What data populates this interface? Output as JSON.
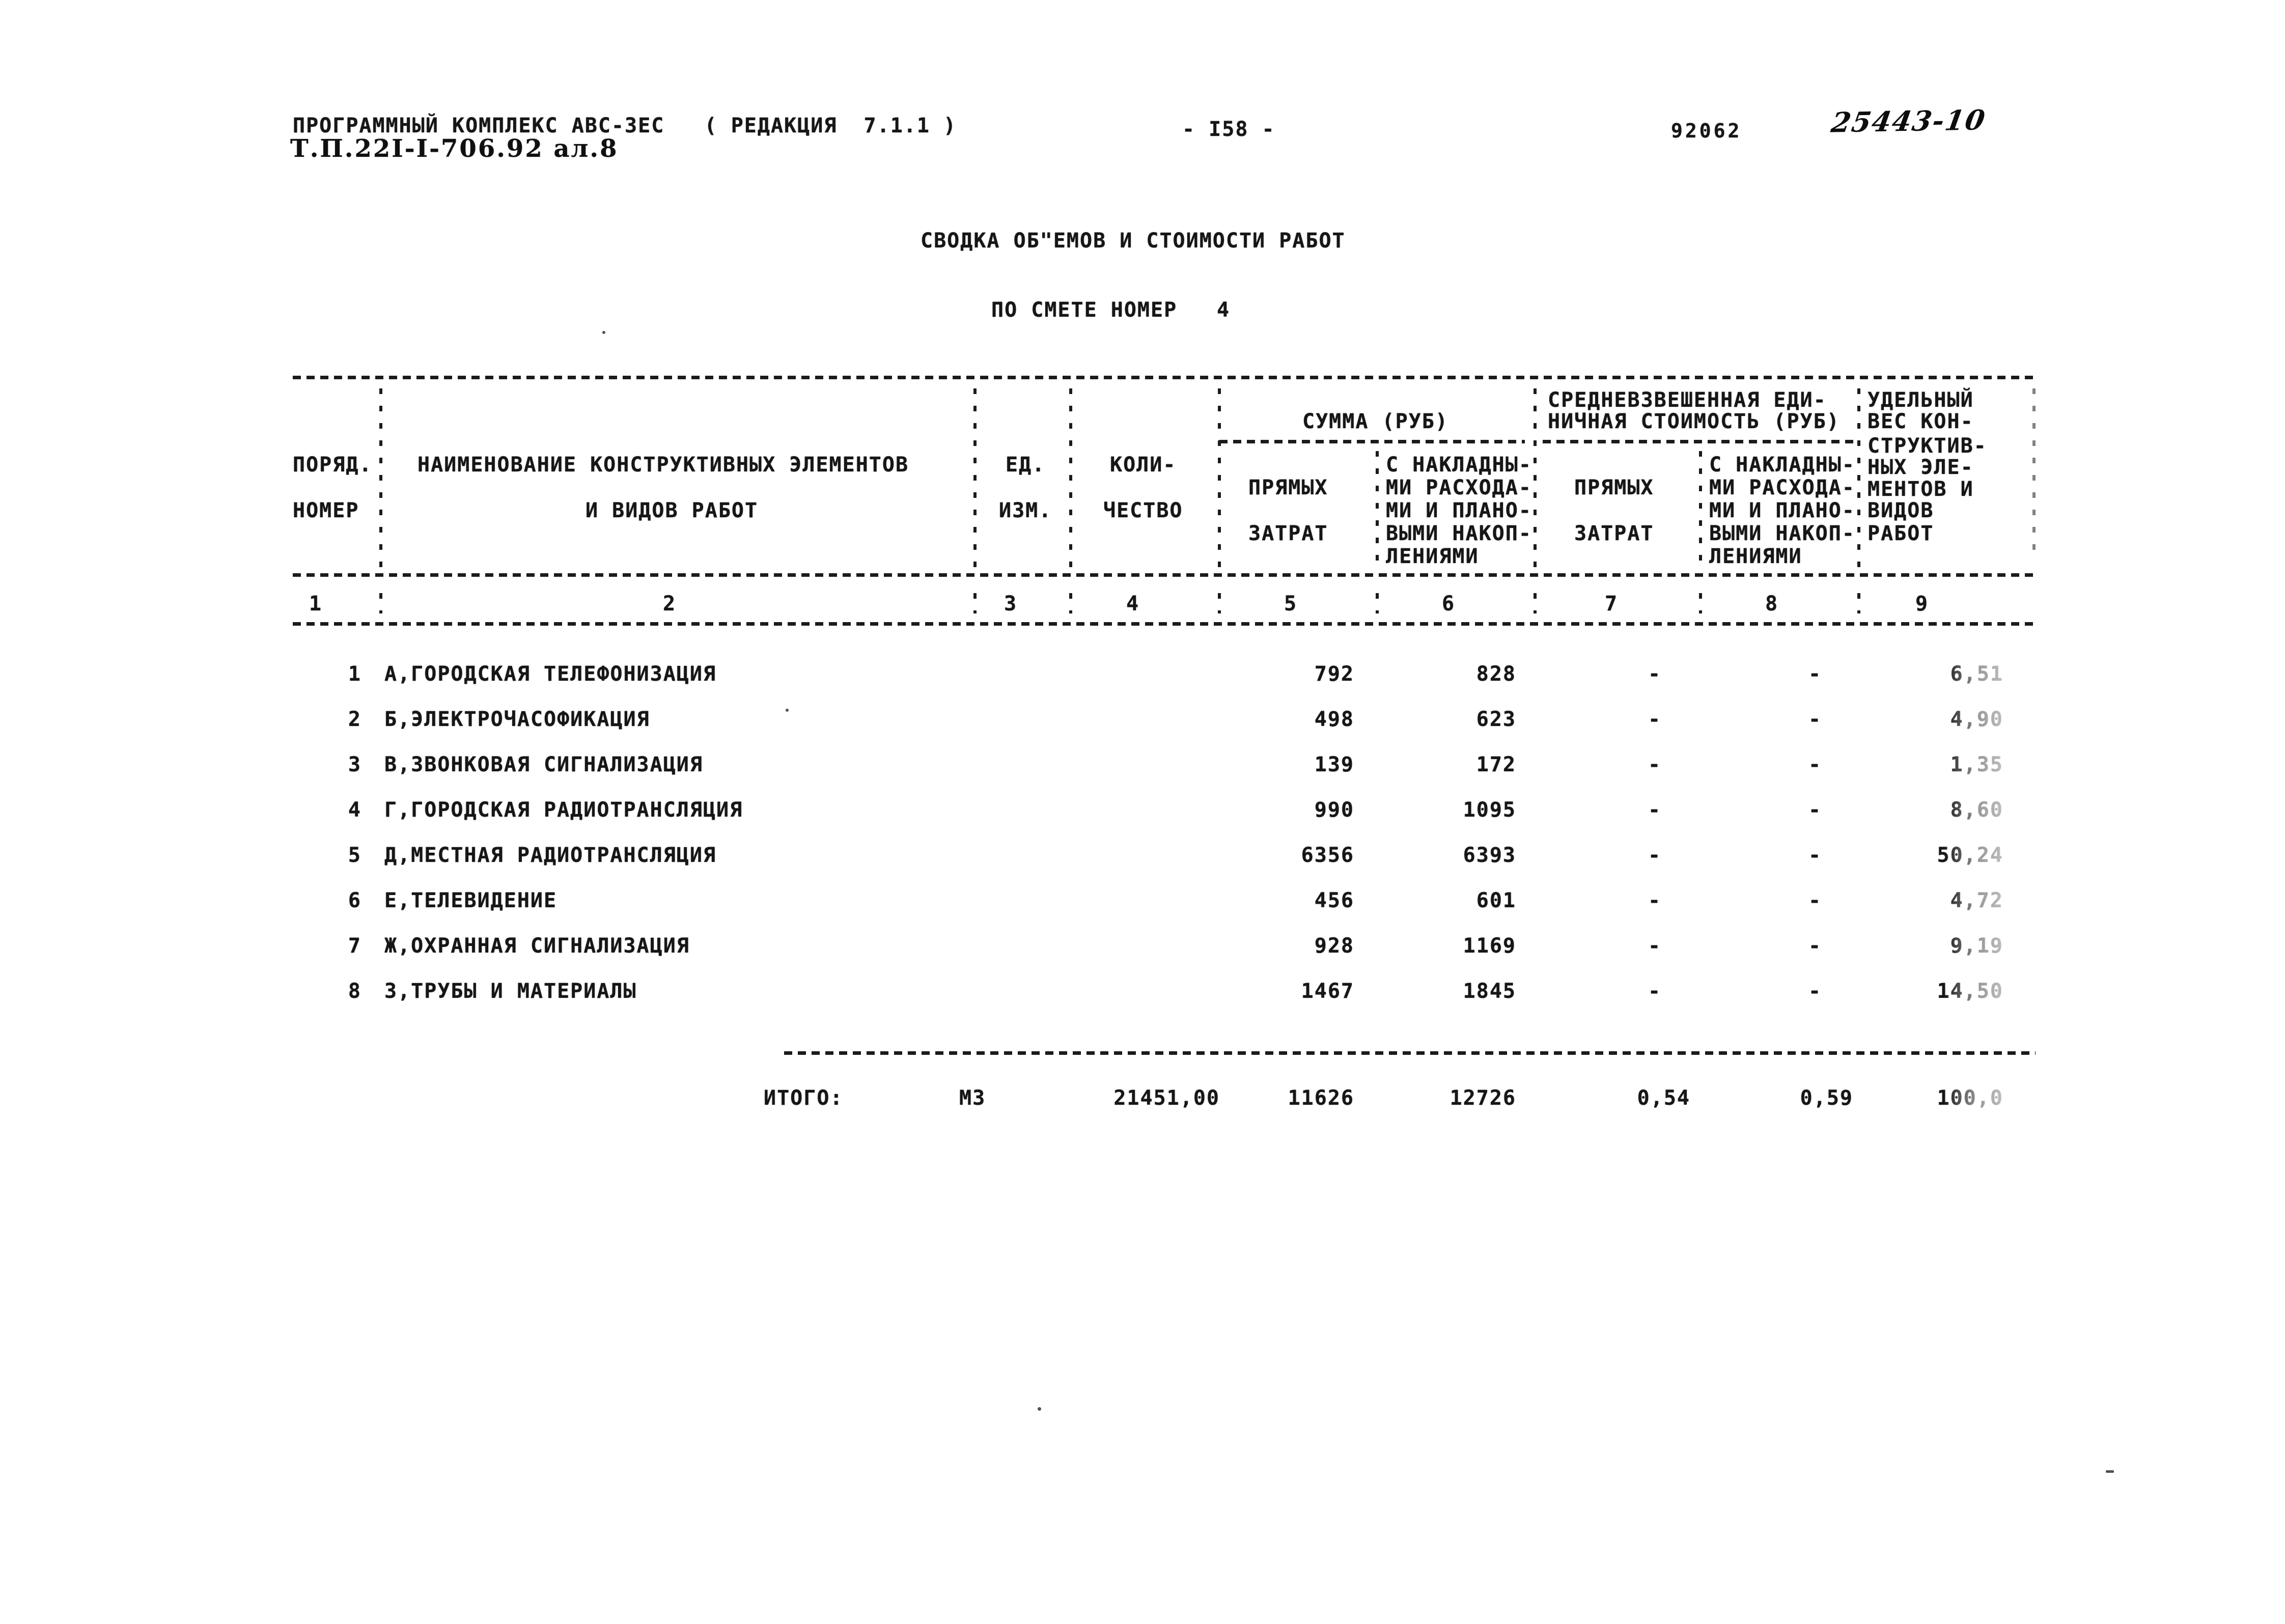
{
  "page": {
    "program_line": "ПРОГРАММНЫЙ КОМПЛЕКС АВС-3ЕС   ( РЕДАКЦИЯ  7.1.1 )",
    "doc_code": "Т.П.22I-I-706.92 ал.8",
    "page_number": "- I58 -",
    "stamp_number": "92062",
    "handwritten_number": "25443-10",
    "title": "СВОДКА ОБ\"ЕМОВ И СТОИМОСТИ РАБОТ",
    "subtitle_label": "ПО СМЕТЕ НОМЕР",
    "subtitle_value": "4"
  },
  "table": {
    "header": {
      "col1_line1": "ПОРЯД.",
      "col1_line2": "НОМЕР",
      "col2_line1": "НАИМЕНОВАНИЕ КОНСТРУКТИВНЫХ ЭЛЕМЕНТОВ",
      "col2_line2": "И ВИДОВ РАБОТ",
      "col3_line1": "ЕД.",
      "col3_line2": "ИЗМ.",
      "col4_line1": "КОЛИ-",
      "col4_line2": "ЧЕСТВО",
      "group_sum": "СУММА (РУБ)",
      "group_unit_line1": "СРЕДНЕВЗВЕШЕННАЯ ЕДИ-",
      "group_unit_line2": "НИЧНАЯ СТОИМОСТЬ (РУБ)",
      "sub_direct_line1": "ПРЯМЫХ",
      "sub_direct_line2": "ЗАТРАТ",
      "sub_overhead_lines": [
        "С НАКЛАДНЫ-",
        "МИ РАСХОДА-",
        "МИ И ПЛАНО-",
        "ВЫМИ НАКОП-",
        "ЛЕНИЯМИ"
      ],
      "col9_lines": [
        "УДЕЛЬНЫЙ",
        "ВЕС КОН-",
        "СТРУКТИВ-",
        "НЫХ ЭЛЕ-",
        "МЕНТОВ И",
        "ВИДОВ",
        "РАБОТ"
      ],
      "col_numbers": [
        "1",
        "2",
        "3",
        "4",
        "5",
        "6",
        "7",
        "8",
        "9"
      ]
    },
    "rows": [
      {
        "num": "1",
        "name": "А,ГОРОДСКАЯ ТЕЛЕФОНИЗАЦИЯ",
        "direct": "792",
        "with_overhead": "828",
        "unit_direct": "-",
        "unit_with_overhead": "-",
        "share": "6,51"
      },
      {
        "num": "2",
        "name": "Б,ЭЛЕКТРОЧАСОФИКАЦИЯ",
        "direct": "498",
        "with_overhead": "623",
        "unit_direct": "-",
        "unit_with_overhead": "-",
        "share": "4,90"
      },
      {
        "num": "3",
        "name": "В,ЗВОНКОВАЯ СИГНАЛИЗАЦИЯ",
        "direct": "139",
        "with_overhead": "172",
        "unit_direct": "-",
        "unit_with_overhead": "-",
        "share": "1,35"
      },
      {
        "num": "4",
        "name": "Г,ГОРОДСКАЯ РАДИОТРАНСЛЯЦИЯ",
        "direct": "990",
        "with_overhead": "1095",
        "unit_direct": "-",
        "unit_with_overhead": "-",
        "share": "8,60"
      },
      {
        "num": "5",
        "name": "Д,МЕСТНАЯ РАДИОТРАНСЛЯЦИЯ",
        "direct": "6356",
        "with_overhead": "6393",
        "unit_direct": "-",
        "unit_with_overhead": "-",
        "share": "50,24"
      },
      {
        "num": "6",
        "name": "Е,ТЕЛЕВИДЕНИЕ",
        "direct": "456",
        "with_overhead": "601",
        "unit_direct": "-",
        "unit_with_overhead": "-",
        "share": "4,72"
      },
      {
        "num": "7",
        "name": "Ж,ОХРАННАЯ СИГНАЛИЗАЦИЯ",
        "direct": "928",
        "with_overhead": "1169",
        "unit_direct": "-",
        "unit_with_overhead": "-",
        "share": "9,19"
      },
      {
        "num": "8",
        "name": "З,ТРУБЫ И МАТЕРИАЛЫ",
        "direct": "1467",
        "with_overhead": "1845",
        "unit_direct": "-",
        "unit_with_overhead": "-",
        "share": "14,50"
      }
    ],
    "totals": {
      "label": "ИТОГО:",
      "unit": "М3",
      "quantity": "21451,00",
      "direct": "11626",
      "with_overhead": "12726",
      "unit_direct": "0,54",
      "unit_with_overhead": "0,59",
      "share": "100,0"
    }
  }
}
